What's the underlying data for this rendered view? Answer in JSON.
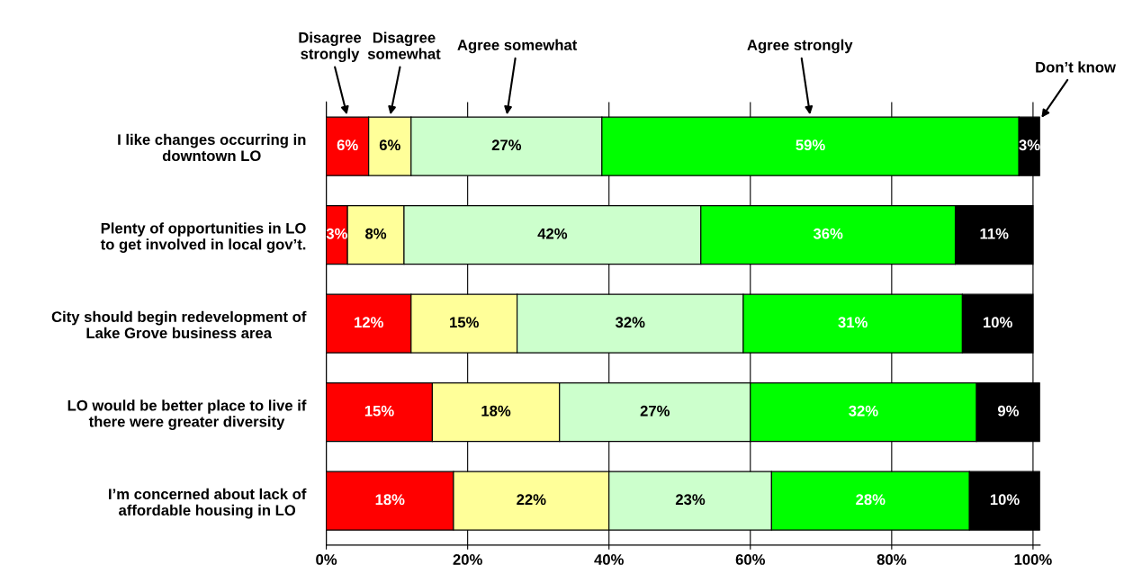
{
  "chart_data": {
    "type": "bar",
    "orientation": "horizontal",
    "stacked": true,
    "grid": "x",
    "categories": [
      "I like changes occurring in\ndowntown LO",
      "Plenty of opportunities in LO\nto get involved in local gov’t.",
      "City should begin redevelopment of\nLake Grove business area",
      "LO would be better place to live if\nthere were greater diversity",
      "I’m concerned about lack of\naffordable housing in LO"
    ],
    "series": [
      {
        "name": "Disagree\nstrongly",
        "color": "#ff0000",
        "values": [
          6,
          3,
          12,
          15,
          18
        ],
        "value_labels": [
          "6%",
          "3%",
          "12%",
          "15%",
          "18%"
        ]
      },
      {
        "name": "Disagree\nsomewhat",
        "color": "#ffff99",
        "values": [
          6,
          8,
          15,
          18,
          22
        ],
        "value_labels": [
          "6%",
          "8%",
          "15%",
          "18%",
          "22%"
        ]
      },
      {
        "name": "Agree somewhat",
        "color": "#ccffcc",
        "values": [
          27,
          42,
          32,
          27,
          23
        ],
        "value_labels": [
          "27%",
          "42%",
          "32%",
          "27%",
          "23%"
        ]
      },
      {
        "name": "Agree strongly",
        "color": "#00ff00",
        "values": [
          59,
          36,
          31,
          32,
          28
        ],
        "value_labels": [
          "59%",
          "36%",
          "31%",
          "32%",
          "28%"
        ]
      },
      {
        "name": "Don’t know",
        "color": "#000000",
        "values": [
          3,
          11,
          10,
          9,
          10
        ],
        "value_labels": [
          "3%",
          "11%",
          "10%",
          "9%",
          "10%"
        ]
      }
    ],
    "xlim": [
      0,
      101
    ],
    "xticks": [
      {
        "value": 0,
        "label": "0%"
      },
      {
        "value": 20,
        "label": "20%"
      },
      {
        "value": 40,
        "label": "40%"
      },
      {
        "value": 60,
        "label": "60%"
      },
      {
        "value": 80,
        "label": "80%"
      },
      {
        "value": 100,
        "label": "100%"
      }
    ]
  }
}
